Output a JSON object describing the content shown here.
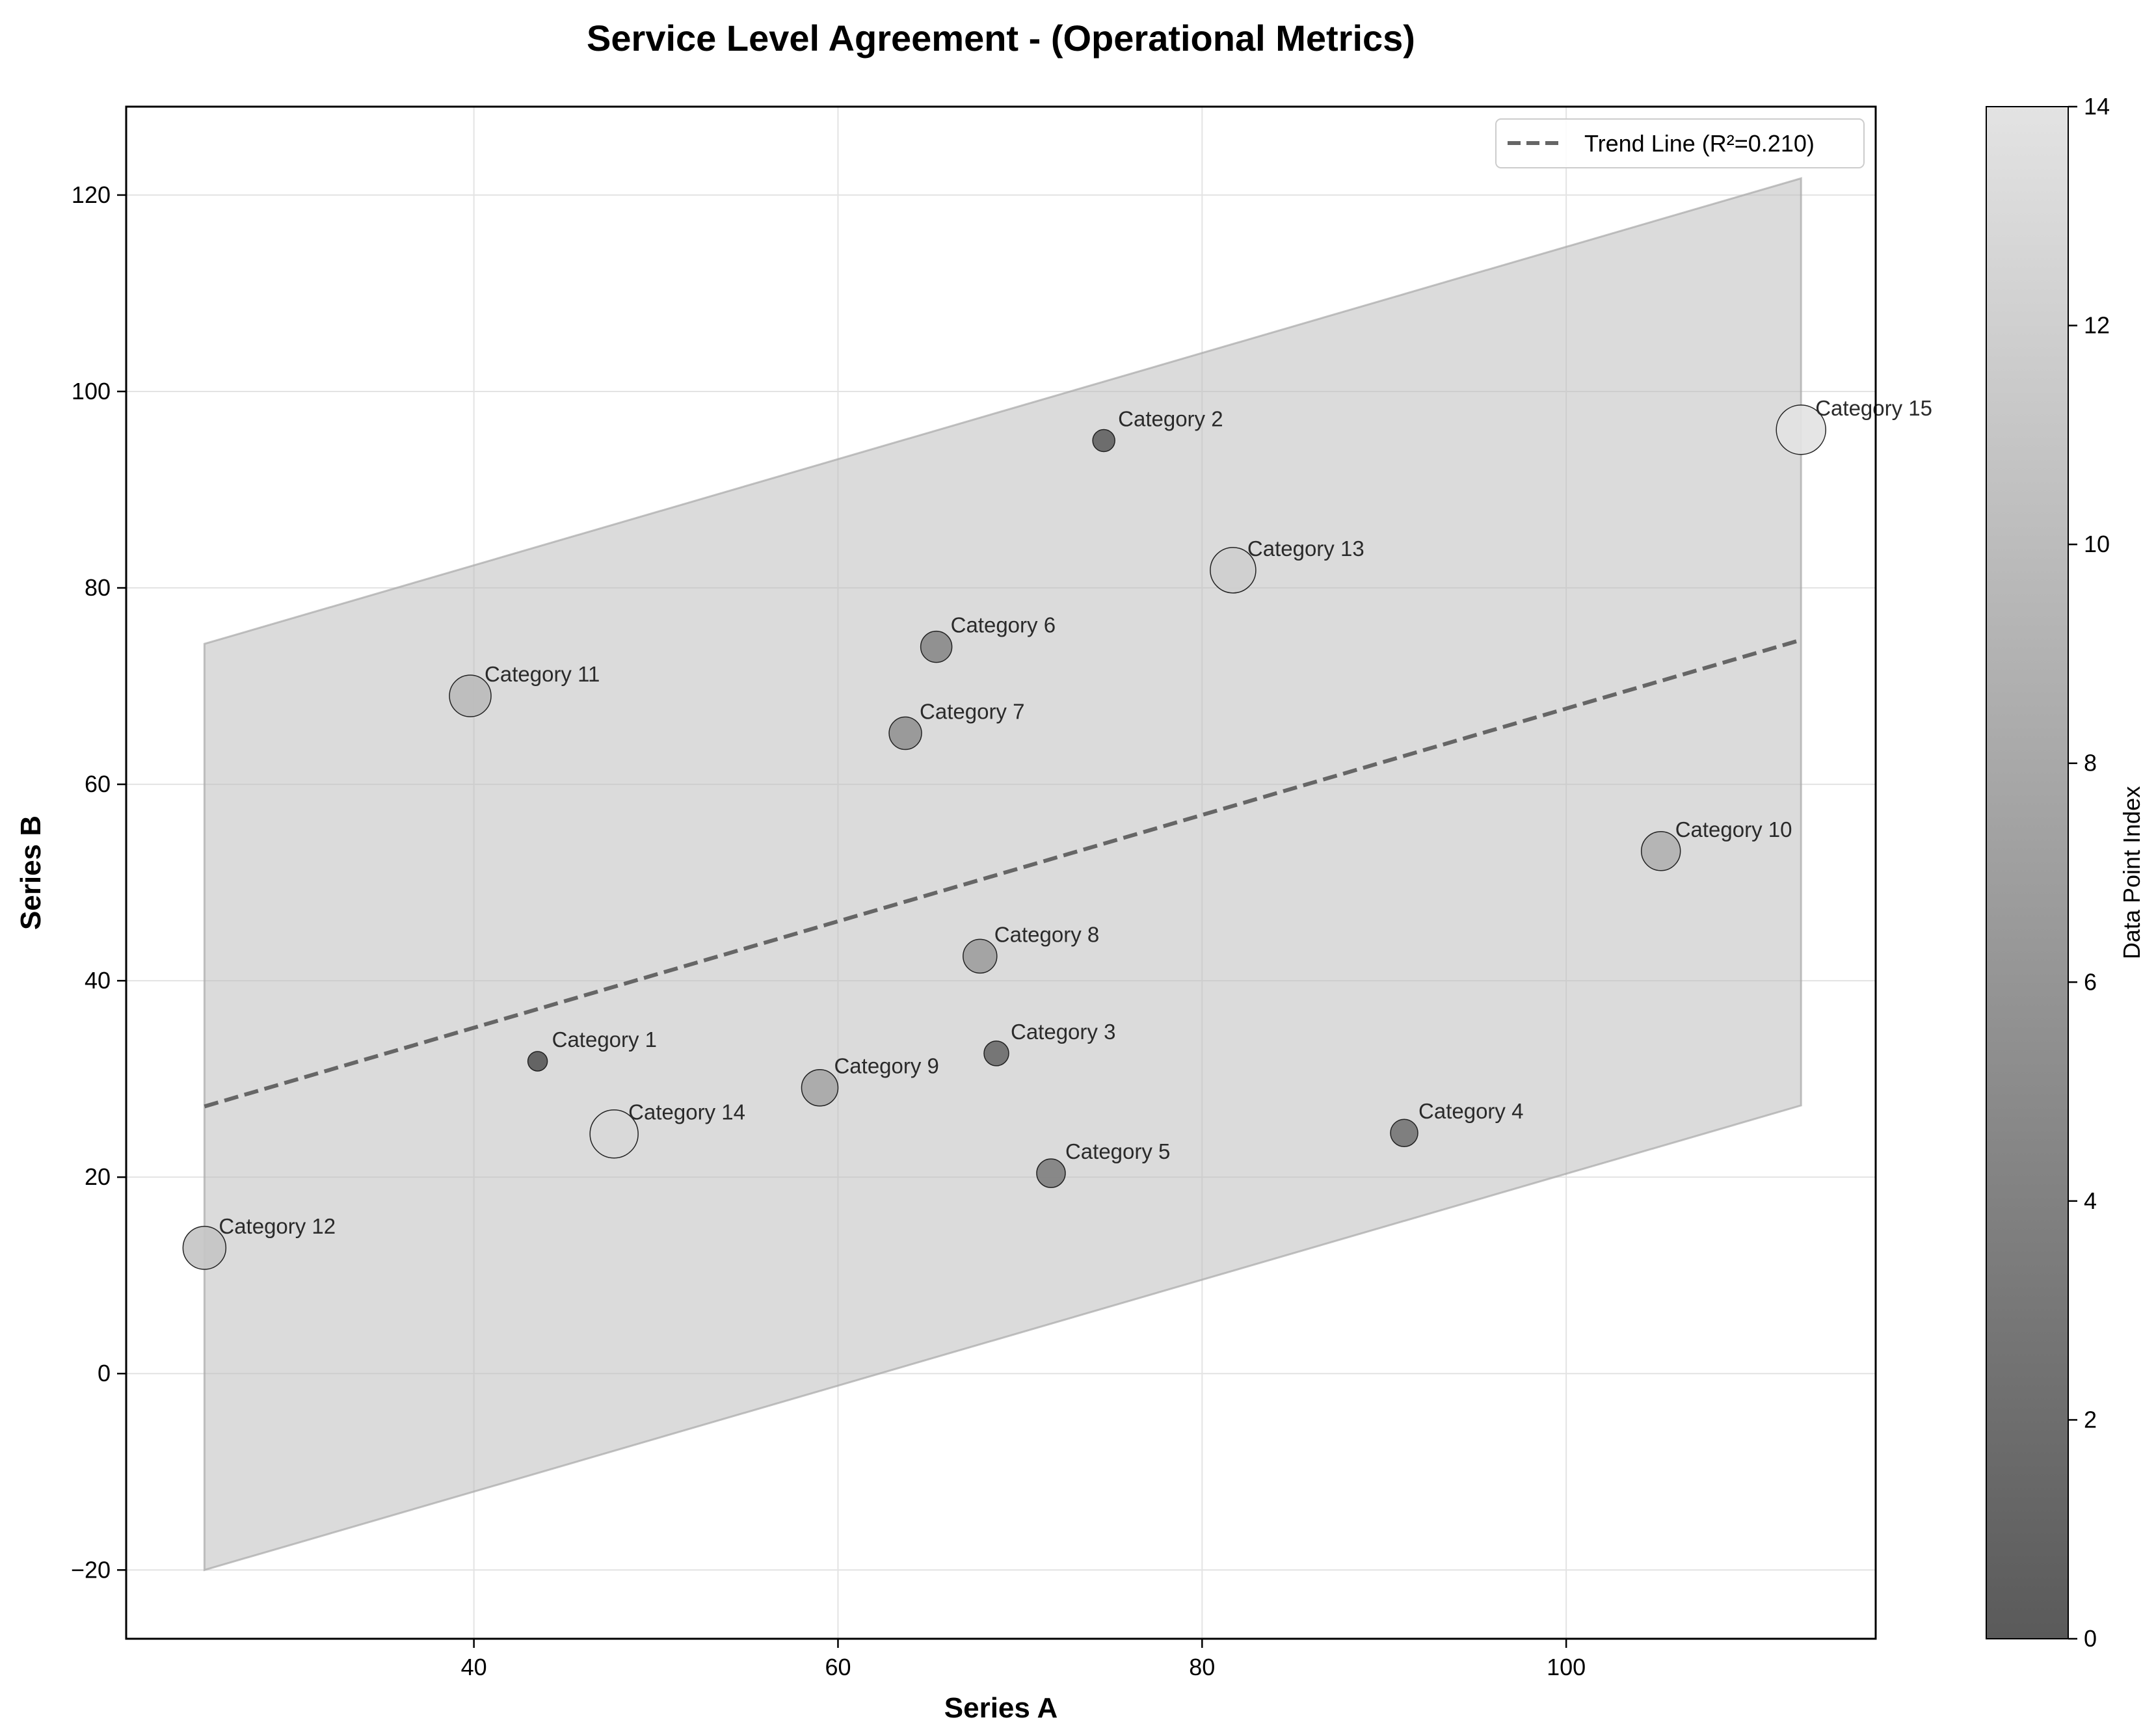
{
  "chart_data": {
    "type": "scatter",
    "title": "Service Level Agreement - (Operational Metrics)",
    "xlabel": "Series A",
    "ylabel": "Series B",
    "xlim": [
      20.9,
      117.0
    ],
    "ylim": [
      -27,
      129
    ],
    "xticks": [
      40,
      60,
      80,
      100
    ],
    "yticks": [
      -20,
      0,
      20,
      40,
      60,
      80,
      100,
      120
    ],
    "x_tick_labels": [
      "40",
      "60",
      "80",
      "100"
    ],
    "y_tick_labels": [
      "−20",
      "0",
      "20",
      "40",
      "60",
      "80",
      "100",
      "120"
    ],
    "grid": true,
    "points": [
      {
        "label": "Category 1",
        "x": 43.5,
        "y": 31.8,
        "size": 15,
        "index": 0
      },
      {
        "label": "Category 2",
        "x": 74.6,
        "y": 95.0,
        "size": 17,
        "index": 1
      },
      {
        "label": "Category 3",
        "x": 68.7,
        "y": 32.6,
        "size": 19,
        "index": 2
      },
      {
        "label": "Category 4",
        "x": 91.1,
        "y": 24.5,
        "size": 21,
        "index": 3
      },
      {
        "label": "Category 5",
        "x": 71.7,
        "y": 20.4,
        "size": 22,
        "index": 4
      },
      {
        "label": "Category 6",
        "x": 65.4,
        "y": 74.0,
        "size": 24,
        "index": 5
      },
      {
        "label": "Category 7",
        "x": 63.7,
        "y": 65.2,
        "size": 25,
        "index": 6
      },
      {
        "label": "Category 8",
        "x": 67.8,
        "y": 42.5,
        "size": 26,
        "index": 7
      },
      {
        "label": "Category 9",
        "x": 59.0,
        "y": 29.1,
        "size": 28,
        "index": 8
      },
      {
        "label": "Category 10",
        "x": 105.2,
        "y": 53.2,
        "size": 30,
        "index": 9
      },
      {
        "label": "Category 11",
        "x": 39.8,
        "y": 69.0,
        "size": 32,
        "index": 10
      },
      {
        "label": "Category 12",
        "x": 25.2,
        "y": 12.8,
        "size": 33,
        "index": 11
      },
      {
        "label": "Category 13",
        "x": 81.7,
        "y": 81.8,
        "size": 35,
        "index": 12
      },
      {
        "label": "Category 14",
        "x": 47.7,
        "y": 24.4,
        "size": 37,
        "index": 13
      },
      {
        "label": "Category 15",
        "x": 112.9,
        "y": 96.1,
        "size": 38,
        "index": 14
      }
    ],
    "trend_line": {
      "name": "Trend Line (R²=0.210)",
      "x": [
        25.2,
        112.9
      ],
      "y": [
        27.2,
        74.7
      ],
      "style": "dashed",
      "color": "#666666"
    },
    "confidence_band": {
      "x": [
        25.2,
        112.9
      ],
      "upper": [
        74.3,
        121.7
      ],
      "lower": [
        -20.0,
        27.3
      ],
      "color": "#bdbdbd"
    },
    "legend": {
      "position": "top-right",
      "entries": [
        "Trend Line (R²=0.210)"
      ]
    },
    "colorbar": {
      "label": "Data Point Index",
      "min": 0,
      "max": 14,
      "ticks": [
        0,
        2,
        4,
        6,
        8,
        10,
        12,
        14
      ],
      "tick_labels": [
        "0",
        "2",
        "4",
        "6",
        "8",
        "10",
        "12",
        "14"
      ],
      "color_min": "#5a5a5a",
      "color_max": "#e3e3e3"
    }
  }
}
